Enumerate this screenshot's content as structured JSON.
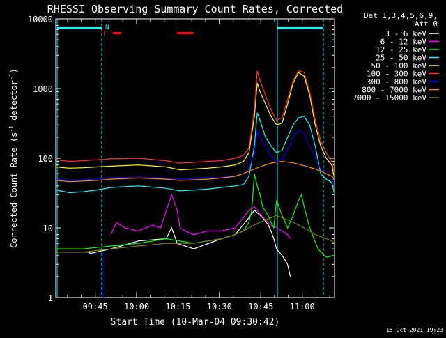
{
  "chart_data": {
    "type": "line",
    "title": "RHESSI Observing Summary Count Rates, Corrected",
    "xlabel": "Start Time (10-Mar-04 09:30:42)",
    "ylabel_main": "Corrected Count Rate (s",
    "ylabel_exp1": "-1",
    "ylabel_mid": " detector",
    "ylabel_exp2": "-1",
    "ylabel_end": ")",
    "y_scale": "log",
    "ylim": [
      1,
      10000
    ],
    "xlim_minutes": [
      0,
      101
    ],
    "x_tick_labels": [
      "09:45",
      "10:00",
      "10:15",
      "10:30",
      "10:45",
      "11:00"
    ],
    "y_tick_labels": [
      "1",
      "10",
      "100",
      "1000",
      "10000"
    ],
    "legend_header": [
      "Det 1,3,4,5,6,9,",
      "Att 0"
    ],
    "timestamp": "15-Oct-2021 19:23",
    "flag_letters": {
      "n": "N",
      "f": "F"
    },
    "series": [
      {
        "name": "3 - 6 keV",
        "color": "#ffffff",
        "x": [
          0,
          12,
          12.5,
          20,
          30,
          40,
          42,
          44,
          50,
          60,
          65,
          70,
          72,
          75,
          77,
          78,
          79,
          80,
          81,
          82,
          83,
          84,
          85
        ],
        "y": [
          4.5,
          4.5,
          4.3,
          5,
          6.5,
          7,
          10,
          6,
          5,
          7,
          8,
          14,
          18,
          14,
          11,
          9,
          7,
          5,
          4.5,
          4,
          3.5,
          3,
          2
        ]
      },
      {
        "name": "6 - 12 keV",
        "color": "#ff00ff",
        "x": [
          20,
          22,
          25,
          30,
          35,
          38,
          42,
          44,
          45,
          47,
          50,
          55,
          60,
          65,
          68,
          70,
          72,
          74,
          76,
          78,
          80,
          82,
          84,
          85
        ],
        "y": [
          8,
          12,
          10,
          9,
          11,
          10,
          30,
          18,
          10,
          9,
          8,
          9,
          9,
          10,
          14,
          18,
          20,
          16,
          13,
          11,
          10,
          9,
          8,
          7
        ]
      },
      {
        "name": "12 - 25 keV",
        "color": "#00ff00",
        "x": [
          0,
          10,
          20,
          30,
          40,
          50,
          60,
          65,
          68,
          70,
          71,
          72,
          73,
          74,
          75,
          77,
          78,
          79,
          80,
          82,
          84,
          86,
          88,
          89,
          90,
          92,
          95,
          98,
          101
        ],
        "y": [
          5,
          5,
          5.5,
          6,
          7,
          6,
          7,
          8,
          9,
          12,
          18,
          60,
          40,
          30,
          20,
          15,
          12,
          10,
          25,
          15,
          10,
          15,
          25,
          30,
          20,
          10,
          5,
          3.8,
          4
        ]
      },
      {
        "name": "25 - 50 keV",
        "color": "#00ffff",
        "x": [
          0,
          5,
          10,
          15,
          20,
          30,
          40,
          45,
          50,
          55,
          60,
          65,
          68,
          70,
          72,
          73,
          74,
          76,
          78,
          80,
          82,
          84,
          86,
          88,
          90,
          92,
          94,
          96,
          98,
          100,
          101
        ],
        "y": [
          35,
          32,
          33,
          35,
          38,
          40,
          37,
          34,
          35,
          36,
          38,
          40,
          42,
          55,
          150,
          450,
          350,
          200,
          150,
          120,
          130,
          200,
          300,
          380,
          400,
          300,
          150,
          60,
          50,
          45,
          30
        ]
      },
      {
        "name": "50 - 100 keV",
        "color": "#ffff00",
        "x": [
          0,
          5,
          10,
          15,
          20,
          30,
          40,
          45,
          50,
          55,
          60,
          65,
          68,
          70,
          72,
          73,
          74,
          76,
          78,
          80,
          82,
          84,
          86,
          88,
          90,
          92,
          94,
          96,
          98,
          100,
          101
        ],
        "y": [
          75,
          72,
          73,
          75,
          77,
          80,
          75,
          68,
          70,
          72,
          75,
          80,
          90,
          120,
          400,
          1200,
          900,
          600,
          400,
          300,
          320,
          600,
          1200,
          1700,
          1500,
          800,
          300,
          150,
          100,
          80,
          50
        ]
      },
      {
        "name": "100 - 300 keV",
        "color": "#ff3030",
        "x": [
          0,
          5,
          10,
          15,
          20,
          30,
          40,
          45,
          50,
          55,
          60,
          65,
          68,
          70,
          72,
          73,
          74,
          76,
          78,
          80,
          82,
          84,
          86,
          88,
          90,
          92,
          94,
          96,
          98,
          100,
          101
        ],
        "y": [
          95,
          90,
          92,
          95,
          98,
          100,
          92,
          85,
          87,
          90,
          92,
          100,
          110,
          140,
          500,
          1800,
          1300,
          800,
          500,
          350,
          380,
          700,
          1300,
          1800,
          1700,
          900,
          350,
          180,
          120,
          90,
          60
        ]
      },
      {
        "name": "300 - 800 keV",
        "color": "#0000ff",
        "x": [
          0,
          5,
          10,
          15,
          20,
          30,
          40,
          45,
          50,
          55,
          60,
          65,
          68,
          70,
          72,
          73,
          74,
          76,
          78,
          80,
          82,
          84,
          86,
          88,
          90,
          92,
          94,
          96,
          98,
          100,
          101
        ],
        "y": [
          50,
          48,
          49,
          50,
          52,
          54,
          51,
          50,
          51,
          52,
          53,
          56,
          60,
          70,
          120,
          250,
          200,
          150,
          110,
          90,
          95,
          130,
          200,
          250,
          230,
          150,
          100,
          70,
          60,
          55,
          40
        ]
      },
      {
        "name": "800 - 7000 keV",
        "color": "#ff8c00",
        "x": [
          0,
          5,
          10,
          15,
          20,
          30,
          40,
          45,
          50,
          55,
          60,
          65,
          68,
          70,
          72,
          74,
          76,
          78,
          80,
          82,
          84,
          86,
          88,
          90,
          92,
          94,
          96,
          98,
          100,
          101
        ],
        "y": [
          48,
          46,
          47,
          48,
          50,
          52,
          50,
          48,
          49,
          50,
          52,
          55,
          60,
          65,
          70,
          75,
          80,
          85,
          88,
          90,
          88,
          86,
          82,
          78,
          74,
          70,
          65,
          60,
          55,
          50
        ]
      },
      {
        "name": "7000 - 15000 keV",
        "color": "#808000",
        "x": [
          0,
          10,
          20,
          30,
          40,
          50,
          55,
          60,
          65,
          68,
          70,
          72,
          74,
          76,
          78,
          80,
          82,
          84,
          86,
          88,
          90,
          92,
          94,
          96,
          98,
          100,
          101
        ],
        "y": [
          4.5,
          4.5,
          5,
          5.5,
          6,
          6,
          6.5,
          7,
          8,
          9,
          10,
          11,
          12,
          13,
          14,
          15,
          14,
          13,
          12,
          11,
          10,
          9,
          8,
          7.5,
          7,
          6.5,
          6
        ]
      }
    ]
  }
}
